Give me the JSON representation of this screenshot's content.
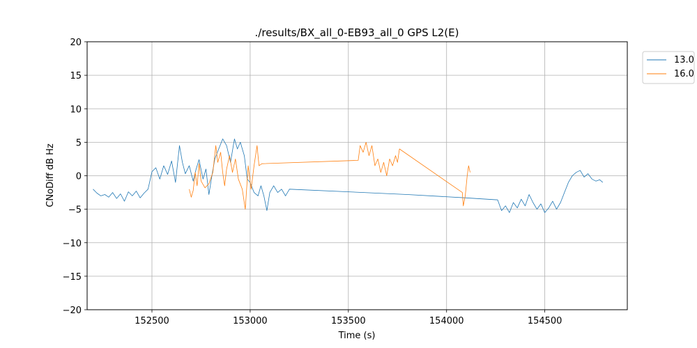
{
  "chart_data": {
    "type": "line",
    "title": "./results/BX_all_0-EB93_all_0 GPS L2(E)",
    "xlabel": "Time (s)",
    "ylabel": "CNoDiff dB Hz",
    "xlim": [
      152170,
      154920
    ],
    "ylim": [
      -20,
      20
    ],
    "xticks": [
      152500,
      153000,
      153500,
      154000,
      154500
    ],
    "yticks": [
      -20,
      -15,
      -10,
      -5,
      0,
      5,
      10,
      15,
      20
    ],
    "grid": true,
    "legend_position": "outside-top-right",
    "series": [
      {
        "name": "13.0",
        "color": "#1f77b4",
        "points": [
          [
            152200,
            -2.0
          ],
          [
            152220,
            -2.6
          ],
          [
            152240,
            -3.0
          ],
          [
            152260,
            -2.8
          ],
          [
            152280,
            -3.2
          ],
          [
            152300,
            -2.5
          ],
          [
            152320,
            -3.4
          ],
          [
            152340,
            -2.7
          ],
          [
            152360,
            -3.8
          ],
          [
            152380,
            -2.4
          ],
          [
            152400,
            -3.0
          ],
          [
            152420,
            -2.3
          ],
          [
            152440,
            -3.3
          ],
          [
            152460,
            -2.6
          ],
          [
            152480,
            -2.0
          ],
          [
            152500,
            0.6
          ],
          [
            152520,
            1.2
          ],
          [
            152540,
            -0.5
          ],
          [
            152560,
            1.5
          ],
          [
            152580,
            0.2
          ],
          [
            152600,
            2.2
          ],
          [
            152620,
            -1.0
          ],
          [
            152640,
            4.5
          ],
          [
            152655,
            2.0
          ],
          [
            152670,
            0.3
          ],
          [
            152690,
            1.5
          ],
          [
            152710,
            -0.8
          ],
          [
            152725,
            1.0
          ],
          [
            152740,
            2.4
          ],
          [
            152760,
            -0.5
          ],
          [
            152775,
            1.0
          ],
          [
            152790,
            -2.8
          ],
          [
            152805,
            0.0
          ],
          [
            152820,
            2.5
          ],
          [
            152840,
            4.0
          ],
          [
            152860,
            5.5
          ],
          [
            152880,
            4.5
          ],
          [
            152900,
            2.0
          ],
          [
            152920,
            5.5
          ],
          [
            152935,
            4.0
          ],
          [
            152950,
            5.0
          ],
          [
            152970,
            3.0
          ],
          [
            152985,
            -0.5
          ],
          [
            153000,
            -1.0
          ],
          [
            153020,
            -2.5
          ],
          [
            153040,
            -3.0
          ],
          [
            153055,
            -1.5
          ],
          [
            153070,
            -3.0
          ],
          [
            153085,
            -5.2
          ],
          [
            153100,
            -2.5
          ],
          [
            153120,
            -1.5
          ],
          [
            153140,
            -2.5
          ],
          [
            153160,
            -2.0
          ],
          [
            153180,
            -3.0
          ],
          [
            153200,
            -2.0
          ],
          [
            153500,
            -2.4
          ],
          [
            153800,
            -2.8
          ],
          [
            154100,
            -3.3
          ],
          [
            154260,
            -3.6
          ],
          [
            154280,
            -5.2
          ],
          [
            154300,
            -4.5
          ],
          [
            154320,
            -5.5
          ],
          [
            154340,
            -4.0
          ],
          [
            154360,
            -4.8
          ],
          [
            154380,
            -3.5
          ],
          [
            154400,
            -4.5
          ],
          [
            154420,
            -2.8
          ],
          [
            154440,
            -4.0
          ],
          [
            154460,
            -5.0
          ],
          [
            154480,
            -4.2
          ],
          [
            154500,
            -5.5
          ],
          [
            154520,
            -4.8
          ],
          [
            154540,
            -3.8
          ],
          [
            154560,
            -5.0
          ],
          [
            154580,
            -4.0
          ],
          [
            154600,
            -2.5
          ],
          [
            154620,
            -1.0
          ],
          [
            154640,
            0.0
          ],
          [
            154660,
            0.5
          ],
          [
            154680,
            0.8
          ],
          [
            154700,
            -0.2
          ],
          [
            154720,
            0.3
          ],
          [
            154740,
            -0.5
          ],
          [
            154760,
            -0.8
          ],
          [
            154780,
            -0.6
          ],
          [
            154795,
            -1.0
          ]
        ]
      },
      {
        "name": "16.0",
        "color": "#ff7f0e",
        "points": [
          [
            152690,
            -2.0
          ],
          [
            152700,
            -3.2
          ],
          [
            152710,
            -2.2
          ],
          [
            152720,
            0.5
          ],
          [
            152730,
            -1.5
          ],
          [
            152740,
            1.8
          ],
          [
            152750,
            -0.8
          ],
          [
            152770,
            -1.8
          ],
          [
            152790,
            -1.2
          ],
          [
            152810,
            0.5
          ],
          [
            152825,
            4.5
          ],
          [
            152835,
            2.0
          ],
          [
            152850,
            3.5
          ],
          [
            152860,
            0.5
          ],
          [
            152870,
            -1.5
          ],
          [
            152880,
            1.0
          ],
          [
            152895,
            3.0
          ],
          [
            152910,
            0.5
          ],
          [
            152925,
            2.5
          ],
          [
            152940,
            -0.5
          ],
          [
            152960,
            -2.0
          ],
          [
            152975,
            -5.0
          ],
          [
            152990,
            1.5
          ],
          [
            153005,
            -2.0
          ],
          [
            153020,
            1.5
          ],
          [
            153035,
            4.5
          ],
          [
            153045,
            1.5
          ],
          [
            153060,
            1.8
          ],
          [
            153550,
            2.3
          ],
          [
            153560,
            4.5
          ],
          [
            153575,
            3.5
          ],
          [
            153590,
            5.0
          ],
          [
            153605,
            3.0
          ],
          [
            153620,
            4.5
          ],
          [
            153635,
            1.5
          ],
          [
            153650,
            2.5
          ],
          [
            153665,
            0.5
          ],
          [
            153680,
            2.0
          ],
          [
            153695,
            0.0
          ],
          [
            153710,
            2.5
          ],
          [
            153725,
            1.5
          ],
          [
            153740,
            3.0
          ],
          [
            153750,
            2.0
          ],
          [
            153760,
            4.0
          ],
          [
            154080,
            -2.5
          ],
          [
            154085,
            -4.5
          ],
          [
            154095,
            -3.0
          ],
          [
            154105,
            0.0
          ],
          [
            154112,
            1.5
          ],
          [
            154120,
            0.5
          ]
        ]
      }
    ]
  }
}
